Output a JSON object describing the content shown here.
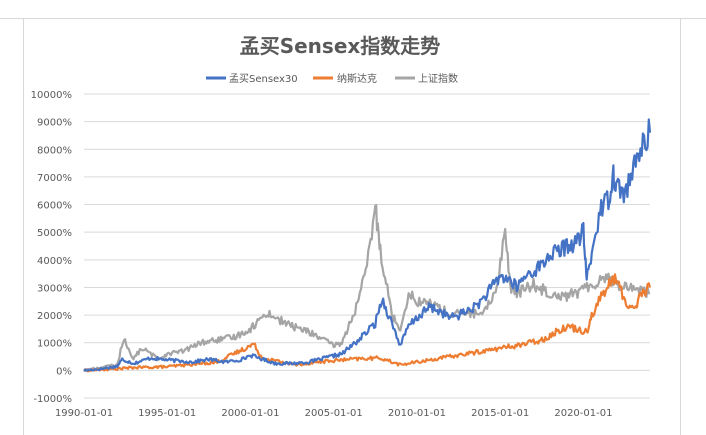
{
  "chart_data": {
    "type": "line",
    "title": "孟买Sensex指数走势",
    "xlabel": "",
    "ylabel": "",
    "x_ticks": [
      "1990-01-01",
      "1995-01-01",
      "2000-01-01",
      "2005-01-01",
      "2010-01-01",
      "2015-01-01",
      "2020-01-01"
    ],
    "y_ticks": [
      "-1000%",
      "0%",
      "1000%",
      "2000%",
      "3000%",
      "4000%",
      "5000%",
      "6000%",
      "7000%",
      "8000%",
      "9000%",
      "10000%"
    ],
    "xlim": [
      1990.0,
      2024.0
    ],
    "ylim": [
      -1000,
      10000
    ],
    "grid": true,
    "legend_position": "top",
    "series": [
      {
        "name": "孟买Sensex30",
        "color": "#4472c4",
        "x": [
          1990.0,
          1991.0,
          1992.0,
          1992.3,
          1993.0,
          1994.0,
          1994.7,
          1995.5,
          1996.5,
          1997.5,
          1998.5,
          1999.5,
          2000.0,
          2000.5,
          2001.5,
          2002.5,
          2003.5,
          2004.5,
          2005.5,
          2006.0,
          2006.5,
          2007.0,
          2007.5,
          2007.9,
          2008.5,
          2009.0,
          2009.5,
          2010.0,
          2010.8,
          2011.5,
          2012.0,
          2012.5,
          2013.5,
          2014.0,
          2014.5,
          2015.0,
          2015.5,
          2016.0,
          2016.5,
          2017.0,
          2017.5,
          2018.0,
          2018.5,
          2019.0,
          2019.5,
          2020.0,
          2020.2,
          2020.5,
          2021.0,
          2021.5,
          2021.8,
          2022.0,
          2022.5,
          2023.0,
          2023.5,
          2024.0
        ],
        "y": [
          0,
          50,
          150,
          400,
          250,
          450,
          400,
          350,
          300,
          400,
          300,
          400,
          550,
          450,
          250,
          250,
          300,
          450,
          600,
          850,
          1100,
          1400,
          1700,
          2600,
          1700,
          900,
          1600,
          1900,
          2300,
          2100,
          1900,
          2000,
          2300,
          2600,
          3000,
          3400,
          3300,
          3000,
          3400,
          3600,
          3800,
          4200,
          4300,
          4500,
          4600,
          5000,
          3300,
          4200,
          5800,
          6200,
          7100,
          6700,
          6400,
          7200,
          8100,
          8600
        ]
      },
      {
        "name": "纳斯达克",
        "color": "#ed7d31",
        "x": [
          1990.0,
          1991.0,
          1993.0,
          1995.0,
          1996.5,
          1998.0,
          1999.0,
          2000.2,
          2000.7,
          2001.5,
          2002.7,
          2004.0,
          2006.0,
          2007.8,
          2009.0,
          2010.5,
          2012.0,
          2014.0,
          2016.0,
          2017.5,
          2019.0,
          2020.2,
          2020.5,
          2021.0,
          2021.9,
          2022.5,
          2023.0,
          2023.5,
          2024.0
        ],
        "y": [
          0,
          20,
          100,
          130,
          220,
          300,
          600,
          950,
          450,
          350,
          200,
          300,
          400,
          450,
          200,
          350,
          500,
          700,
          900,
          1100,
          1600,
          1400,
          2000,
          2600,
          3400,
          2500,
          2200,
          2800,
          3000
        ]
      },
      {
        "name": "上证指数",
        "color": "#a5a5a5",
        "x": [
          1990.0,
          1991.0,
          1992.0,
          1992.4,
          1992.9,
          1993.5,
          1994.5,
          1995.0,
          1996.0,
          1997.0,
          1998.0,
          1999.0,
          2000.0,
          2001.0,
          2001.5,
          2002.5,
          2003.5,
          2005.0,
          2005.5,
          2006.5,
          2007.0,
          2007.5,
          2007.8,
          2008.5,
          2009.0,
          2009.5,
          2010.0,
          2011.0,
          2012.0,
          2013.0,
          2014.0,
          2014.8,
          2015.3,
          2015.6,
          2016.0,
          2017.0,
          2018.0,
          2019.0,
          2020.0,
          2021.0,
          2021.5,
          2022.0,
          2023.0,
          2024.0
        ],
        "y": [
          0,
          100,
          200,
          1200,
          400,
          800,
          400,
          600,
          700,
          1000,
          1100,
          1200,
          1500,
          2100,
          1900,
          1600,
          1400,
          900,
          1000,
          2500,
          3800,
          5900,
          4400,
          2000,
          1500,
          2800,
          2500,
          2400,
          2000,
          2100,
          2000,
          3000,
          5100,
          3000,
          2800,
          3100,
          2800,
          2700,
          2900,
          3300,
          3400,
          3100,
          3000,
          2800
        ]
      }
    ]
  }
}
